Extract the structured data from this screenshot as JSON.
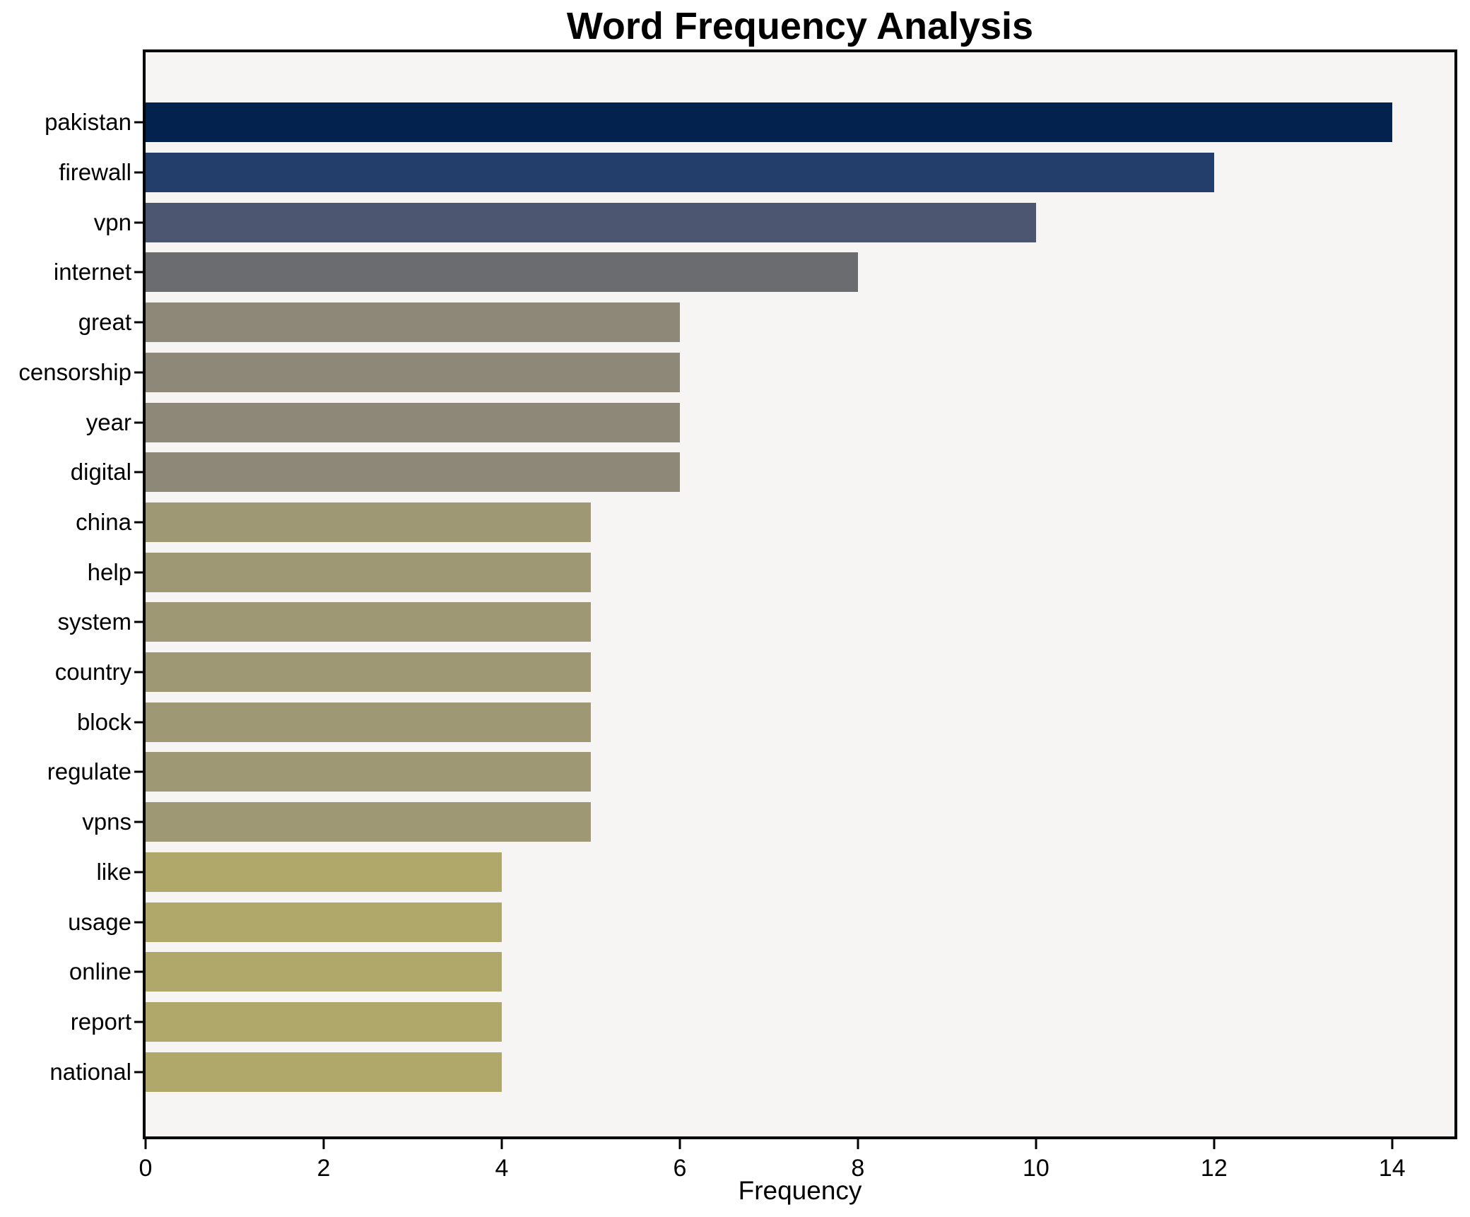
{
  "chart_data": {
    "type": "bar",
    "orientation": "horizontal",
    "title": "Word Frequency Analysis",
    "xlabel": "Frequency",
    "ylabel": "",
    "xlim": [
      0,
      14.7
    ],
    "x_ticks": [
      0,
      2,
      4,
      6,
      8,
      10,
      12,
      14
    ],
    "grid": false,
    "legend_position": "none",
    "plot_background": "#f6f5f3",
    "spine_color": "#000000",
    "categories": [
      "pakistan",
      "firewall",
      "vpn",
      "internet",
      "great",
      "censorship",
      "year",
      "digital",
      "china",
      "help",
      "system",
      "country",
      "block",
      "regulate",
      "vpns",
      "like",
      "usage",
      "online",
      "report",
      "national"
    ],
    "values": [
      14,
      12,
      10,
      8,
      6,
      6,
      6,
      6,
      5,
      5,
      5,
      5,
      5,
      5,
      5,
      4,
      4,
      4,
      4,
      4
    ],
    "bar_colors": [
      "#03234e",
      "#243e6c",
      "#4c5671",
      "#6b6c6f",
      "#8e8878",
      "#8e8878",
      "#8e8878",
      "#8e8878",
      "#9f9874",
      "#9f9874",
      "#9f9874",
      "#9f9874",
      "#9f9874",
      "#9f9874",
      "#9f9874",
      "#b0a76a",
      "#b0a76a",
      "#b0a76a",
      "#b0a76a",
      "#b0a76a"
    ]
  }
}
